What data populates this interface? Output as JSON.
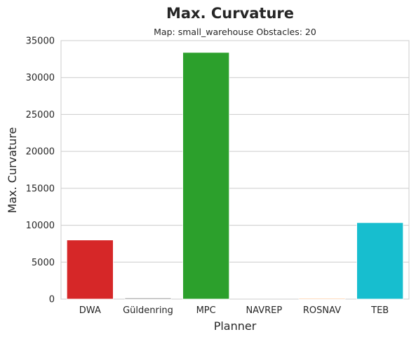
{
  "chart_data": {
    "type": "bar",
    "title": "Max. Curvature",
    "subtitle": "Map: small_warehouse Obstacles: 20",
    "xlabel": "Planner",
    "ylabel": "Max. Curvature",
    "categories": [
      "DWA",
      "Güldenring",
      "MPC",
      "NAVREP",
      "ROSNAV",
      "TEB"
    ],
    "values": [
      8000,
      150,
      33400,
      0,
      100,
      10350
    ],
    "colors": [
      "#d62728",
      "#7f7f7f",
      "#2ca02c",
      "#1f77b4",
      "#ff7f0e",
      "#17becf"
    ],
    "ylim": [
      0,
      35000
    ],
    "yticks": [
      "0",
      "5000",
      "10000",
      "15000",
      "20000",
      "25000",
      "30000",
      "35000"
    ],
    "grid": true
  }
}
